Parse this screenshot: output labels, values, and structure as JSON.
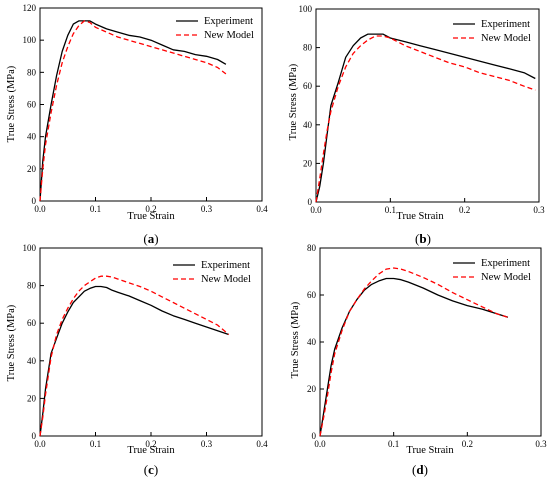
{
  "colors": {
    "experiment": "#000000",
    "model": "#ff0000",
    "axis": "#000000"
  },
  "legend": {
    "experiment": "Experiment",
    "model": "New Model",
    "placement": "top-right"
  },
  "chart_data": [
    {
      "id": "a",
      "type": "line",
      "caption": {
        "open": "(",
        "letter": "a",
        "close": ")"
      },
      "xlabel": "True Strain",
      "ylabel": "True Stress (MPa)",
      "xlim": [
        0,
        0.4
      ],
      "ylim": [
        0,
        120
      ],
      "xticks": [
        "0.0",
        "0.1",
        "0.2",
        "0.3",
        "0.4"
      ],
      "xtick_values": [
        0,
        0.1,
        0.2,
        0.3,
        0.4
      ],
      "yticks": [
        "0",
        "20",
        "40",
        "60",
        "80",
        "100",
        "120"
      ],
      "ytick_values": [
        0,
        20,
        40,
        60,
        80,
        100,
        120
      ],
      "grid": false,
      "series": [
        {
          "name": "Experiment",
          "style": "solid",
          "x": [
            0,
            0.005,
            0.01,
            0.02,
            0.03,
            0.04,
            0.05,
            0.06,
            0.07,
            0.08,
            0.09,
            0.1,
            0.12,
            0.14,
            0.16,
            0.18,
            0.2,
            0.22,
            0.24,
            0.26,
            0.28,
            0.3,
            0.32,
            0.335
          ],
          "y": [
            0,
            25,
            40,
            60,
            78,
            93,
            103,
            110,
            112,
            112,
            112,
            110,
            107,
            105,
            103,
            102,
            100,
            97,
            94,
            93,
            91,
            90,
            88,
            85
          ]
        },
        {
          "name": "New Model",
          "style": "dashed",
          "x": [
            0,
            0.005,
            0.01,
            0.02,
            0.03,
            0.04,
            0.05,
            0.06,
            0.07,
            0.08,
            0.09,
            0.1,
            0.12,
            0.14,
            0.16,
            0.18,
            0.2,
            0.22,
            0.24,
            0.26,
            0.28,
            0.3,
            0.32,
            0.335
          ],
          "y": [
            0,
            20,
            35,
            55,
            72,
            86,
            96,
            104,
            109,
            112,
            111,
            108,
            105,
            102,
            100,
            98,
            96,
            94,
            92,
            90,
            88,
            86,
            83,
            79
          ]
        }
      ]
    },
    {
      "id": "b",
      "type": "line",
      "caption": {
        "open": "(",
        "letter": "b",
        "close": ")"
      },
      "xlabel": "True Strain",
      "ylabel": "True Stress (MPa)",
      "xlim": [
        0,
        0.3
      ],
      "ylim": [
        0,
        100
      ],
      "xticks": [
        "0.0",
        "0.1",
        "0.2",
        "0.3"
      ],
      "xtick_values": [
        0,
        0.1,
        0.2,
        0.3
      ],
      "yticks": [
        "0",
        "20",
        "40",
        "60",
        "80",
        "100"
      ],
      "ytick_values": [
        0,
        20,
        40,
        60,
        80,
        100
      ],
      "grid": false,
      "series": [
        {
          "name": "Experiment",
          "style": "solid",
          "x": [
            0,
            0.005,
            0.01,
            0.015,
            0.02,
            0.03,
            0.04,
            0.05,
            0.06,
            0.07,
            0.08,
            0.09,
            0.1,
            0.12,
            0.14,
            0.16,
            0.18,
            0.2,
            0.22,
            0.24,
            0.26,
            0.28,
            0.295
          ],
          "y": [
            0,
            8,
            20,
            35,
            50,
            62,
            75,
            81,
            85,
            87,
            87,
            87,
            85,
            83,
            81,
            79,
            77,
            75,
            73,
            71,
            69,
            67,
            64
          ]
        },
        {
          "name": "New Model",
          "style": "dashed",
          "x": [
            0,
            0.005,
            0.01,
            0.015,
            0.02,
            0.03,
            0.04,
            0.05,
            0.06,
            0.07,
            0.08,
            0.09,
            0.1,
            0.12,
            0.14,
            0.16,
            0.18,
            0.2,
            0.22,
            0.24,
            0.26,
            0.28,
            0.295
          ],
          "y": [
            0,
            12,
            25,
            37,
            47,
            60,
            70,
            77,
            81,
            84,
            86,
            86,
            85,
            81,
            78,
            75,
            72,
            70,
            67,
            65,
            63,
            60,
            58
          ]
        }
      ]
    },
    {
      "id": "c",
      "type": "line",
      "caption": {
        "open": "(",
        "letter": "c",
        "close": ")"
      },
      "xlabel": "True Strain",
      "ylabel": "True Stress (MPa)",
      "xlim": [
        0,
        0.4
      ],
      "ylim": [
        0,
        100
      ],
      "xticks": [
        "0.0",
        "0.1",
        "0.2",
        "0.3",
        "0.4"
      ],
      "xtick_values": [
        0,
        0.1,
        0.2,
        0.3,
        0.4
      ],
      "yticks": [
        "0",
        "20",
        "40",
        "60",
        "80",
        "100"
      ],
      "ytick_values": [
        0,
        20,
        40,
        60,
        80,
        100
      ],
      "grid": false,
      "series": [
        {
          "name": "Experiment",
          "style": "solid",
          "x": [
            0,
            0.005,
            0.01,
            0.02,
            0.03,
            0.04,
            0.05,
            0.06,
            0.07,
            0.08,
            0.09,
            0.1,
            0.11,
            0.12,
            0.13,
            0.14,
            0.16,
            0.18,
            0.2,
            0.22,
            0.24,
            0.26,
            0.28,
            0.3,
            0.32,
            0.34
          ],
          "y": [
            0,
            12,
            25,
            44,
            52,
            60,
            66,
            71,
            74,
            77,
            78.5,
            79.5,
            79.5,
            79,
            77.5,
            76.5,
            74.5,
            72,
            69.5,
            66.5,
            64,
            62,
            60,
            58,
            56,
            54
          ]
        },
        {
          "name": "New Model",
          "style": "dashed",
          "x": [
            0,
            0.005,
            0.01,
            0.02,
            0.03,
            0.04,
            0.05,
            0.06,
            0.07,
            0.08,
            0.09,
            0.1,
            0.11,
            0.12,
            0.13,
            0.14,
            0.16,
            0.18,
            0.2,
            0.22,
            0.24,
            0.26,
            0.28,
            0.3,
            0.32,
            0.34
          ],
          "y": [
            0,
            10,
            22,
            42,
            54,
            62,
            68,
            73,
            77,
            80,
            82,
            84,
            85,
            85,
            84.5,
            83.5,
            81.5,
            79.5,
            77,
            74,
            71,
            68,
            65,
            62,
            59,
            54
          ]
        }
      ]
    },
    {
      "id": "d",
      "type": "line",
      "caption": {
        "open": "(",
        "letter": "d",
        "close": ")"
      },
      "xlabel": "True Strain",
      "ylabel": "True Stress (MPa)",
      "xlim": [
        0,
        0.3
      ],
      "ylim": [
        0,
        80
      ],
      "xticks": [
        "0.0",
        "0.1",
        "0.2",
        "0.3"
      ],
      "xtick_values": [
        0,
        0.1,
        0.2,
        0.3
      ],
      "yticks": [
        "0",
        "20",
        "40",
        "60",
        "80"
      ],
      "ytick_values": [
        0,
        20,
        40,
        60,
        80
      ],
      "grid": false,
      "series": [
        {
          "name": "Experiment",
          "style": "solid",
          "x": [
            0,
            0.005,
            0.01,
            0.015,
            0.02,
            0.03,
            0.04,
            0.05,
            0.06,
            0.07,
            0.08,
            0.09,
            0.1,
            0.11,
            0.12,
            0.14,
            0.16,
            0.18,
            0.2,
            0.22,
            0.24,
            0.255
          ],
          "y": [
            0,
            10,
            20,
            30,
            37,
            46,
            53,
            58,
            62,
            64.5,
            66,
            67,
            67,
            66.5,
            65.5,
            63,
            60,
            57.5,
            55.5,
            54,
            52,
            50.5
          ]
        },
        {
          "name": "New Model",
          "style": "dashed",
          "x": [
            0,
            0.005,
            0.01,
            0.015,
            0.02,
            0.03,
            0.04,
            0.05,
            0.06,
            0.07,
            0.08,
            0.09,
            0.1,
            0.11,
            0.12,
            0.14,
            0.16,
            0.18,
            0.2,
            0.22,
            0.24,
            0.255
          ],
          "y": [
            0,
            8,
            17,
            27,
            35,
            45,
            53,
            58,
            62.5,
            66,
            69,
            71,
            71.5,
            71,
            70,
            67.5,
            64.5,
            61,
            58,
            55,
            52,
            50.5
          ]
        }
      ]
    }
  ]
}
